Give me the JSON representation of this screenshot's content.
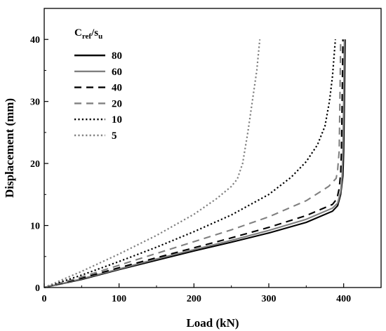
{
  "chart_data": {
    "type": "line",
    "title": "",
    "xlabel": "Load (kN)",
    "ylabel": "Displacement (mm)",
    "xlim": [
      0,
      450
    ],
    "ylim": [
      0,
      45
    ],
    "xticks": [
      0,
      100,
      200,
      300,
      400
    ],
    "yticks": [
      0,
      10,
      20,
      30,
      40
    ],
    "grid": false,
    "legend_position": "top-left",
    "legend_title": {
      "base": "C",
      "sub1": "ref",
      "sep": "/s",
      "sub2": "u"
    },
    "series": [
      {
        "name": "80",
        "color": "#000000",
        "style": "solid",
        "points": [
          [
            0,
            0
          ],
          [
            50,
            1.3
          ],
          [
            100,
            2.9
          ],
          [
            150,
            4.4
          ],
          [
            200,
            5.9
          ],
          [
            250,
            7.3
          ],
          [
            300,
            8.8
          ],
          [
            350,
            10.5
          ],
          [
            385,
            12.3
          ],
          [
            392,
            13.2
          ],
          [
            396,
            15
          ],
          [
            399,
            18
          ],
          [
            400,
            22
          ],
          [
            401,
            30
          ],
          [
            402,
            40
          ]
        ]
      },
      {
        "name": "60",
        "color": "#808080",
        "style": "solid",
        "points": [
          [
            0,
            0
          ],
          [
            50,
            1.4
          ],
          [
            100,
            3.0
          ],
          [
            150,
            4.6
          ],
          [
            200,
            6.1
          ],
          [
            250,
            7.6
          ],
          [
            300,
            9.2
          ],
          [
            350,
            11.0
          ],
          [
            385,
            12.8
          ],
          [
            392,
            13.6
          ],
          [
            396,
            15.5
          ],
          [
            398,
            18
          ],
          [
            399,
            22
          ],
          [
            400,
            30
          ],
          [
            401,
            40
          ]
        ]
      },
      {
        "name": "40",
        "color": "#000000",
        "style": "dashed",
        "points": [
          [
            0,
            0
          ],
          [
            50,
            1.5
          ],
          [
            100,
            3.2
          ],
          [
            150,
            4.8
          ],
          [
            200,
            6.4
          ],
          [
            250,
            8.0
          ],
          [
            300,
            9.7
          ],
          [
            350,
            11.6
          ],
          [
            385,
            13.4
          ],
          [
            391,
            14.3
          ],
          [
            394,
            16
          ],
          [
            396,
            18.5
          ],
          [
            397,
            22
          ],
          [
            398,
            30
          ],
          [
            399,
            40
          ]
        ]
      },
      {
        "name": "20",
        "color": "#808080",
        "style": "dashed",
        "points": [
          [
            0,
            0
          ],
          [
            50,
            1.7
          ],
          [
            100,
            3.6
          ],
          [
            150,
            5.5
          ],
          [
            200,
            7.4
          ],
          [
            250,
            9.3
          ],
          [
            300,
            11.4
          ],
          [
            350,
            14.0
          ],
          [
            380,
            16.3
          ],
          [
            390,
            17.6
          ],
          [
            392,
            19
          ],
          [
            394,
            22
          ],
          [
            395,
            30
          ],
          [
            396,
            40
          ]
        ]
      },
      {
        "name": "10",
        "color": "#000000",
        "style": "dotted",
        "points": [
          [
            0,
            0
          ],
          [
            50,
            2.0
          ],
          [
            100,
            4.2
          ],
          [
            150,
            6.5
          ],
          [
            200,
            9.0
          ],
          [
            250,
            11.7
          ],
          [
            300,
            15.0
          ],
          [
            330,
            17.8
          ],
          [
            350,
            20.3
          ],
          [
            365,
            23
          ],
          [
            375,
            26
          ],
          [
            381,
            30
          ],
          [
            385,
            34
          ],
          [
            387,
            37
          ],
          [
            389,
            40
          ]
        ]
      },
      {
        "name": "5",
        "color": "#808080",
        "style": "dotted",
        "points": [
          [
            0,
            0
          ],
          [
            50,
            2.6
          ],
          [
            100,
            5.4
          ],
          [
            150,
            8.4
          ],
          [
            200,
            11.8
          ],
          [
            230,
            14.3
          ],
          [
            250,
            16.3
          ],
          [
            258,
            17.5
          ],
          [
            265,
            20
          ],
          [
            272,
            25
          ],
          [
            278,
            30
          ],
          [
            284,
            35
          ],
          [
            288,
            40
          ]
        ]
      }
    ]
  }
}
